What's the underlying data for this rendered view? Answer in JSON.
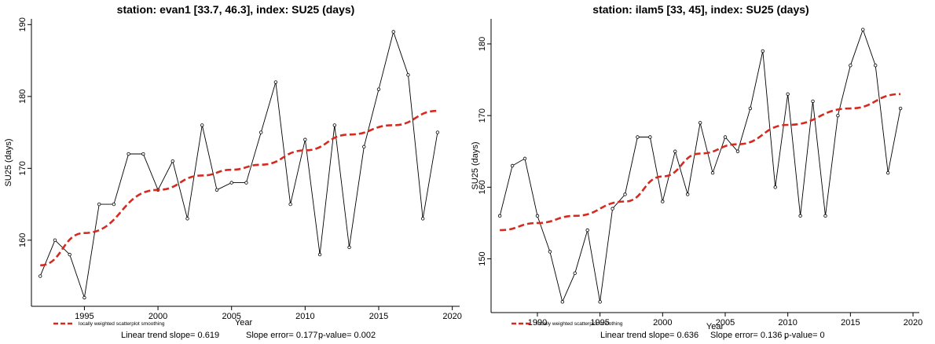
{
  "colors": {
    "line": "#000000",
    "trend": "#d42a20",
    "axis": "#000000",
    "background": "#ffffff"
  },
  "chart_data": [
    {
      "type": "line",
      "title": "station: evan1 [33.7, 46.3], index: SU25 (days)",
      "xlabel": "Year",
      "ylabel": "SU25 (days)",
      "xlim": [
        1991.4,
        2020.5
      ],
      "ylim": [
        150.8,
        190.8
      ],
      "xticks": [
        1995,
        2000,
        2005,
        2010,
        2015,
        2020
      ],
      "yticks": [
        160,
        170,
        180,
        190
      ],
      "x": [
        1992,
        1993,
        1994,
        1995,
        1996,
        1997,
        1998,
        1999,
        2000,
        2001,
        2002,
        2003,
        2004,
        2005,
        2006,
        2007,
        2008,
        2009,
        2010,
        2011,
        2012,
        2013,
        2014,
        2015,
        2016,
        2017,
        2018,
        2019
      ],
      "series": [
        {
          "values": [
            155,
            160,
            158,
            152,
            165,
            165,
            172,
            172,
            167,
            171,
            163,
            176,
            167,
            168,
            168,
            175,
            182,
            165,
            174,
            158,
            176,
            159,
            173,
            181,
            189,
            183,
            163,
            175
          ]
        }
      ],
      "trend": {
        "label": "locally weighted scatterplot smoothing",
        "x": [
          1992,
          1995,
          2000,
          2003,
          2005,
          2007,
          2010,
          2013,
          2016,
          2019
        ],
        "values": [
          156.5,
          161,
          167,
          169,
          169.8,
          170.5,
          172.5,
          174.7,
          176,
          178
        ]
      },
      "stats": {
        "slope_text": "Linear trend slope= 0.619",
        "error_text": "Slope error= 0.177 ,",
        "pvalue_text": "p-value= 0.002"
      }
    },
    {
      "type": "line",
      "title": "station: ilam5 [33, 45], index: SU25 (days)",
      "xlabel": "Year",
      "ylabel": "SU25 (days)",
      "xlim": [
        1986.3,
        2020.5
      ],
      "ylim": [
        142.5,
        183.5
      ],
      "xticks": [
        1990,
        1995,
        2000,
        2005,
        2010,
        2015,
        2020
      ],
      "yticks": [
        150,
        160,
        170,
        180
      ],
      "x": [
        1987,
        1988,
        1989,
        1990,
        1991,
        1992,
        1993,
        1994,
        1995,
        1996,
        1997,
        1998,
        1999,
        2000,
        2001,
        2002,
        2003,
        2004,
        2005,
        2006,
        2007,
        2008,
        2009,
        2010,
        2011,
        2012,
        2013,
        2014,
        2015,
        2016,
        2017,
        2018,
        2019
      ],
      "series": [
        {
          "values": [
            156,
            163,
            164,
            156,
            151,
            144,
            148,
            154,
            144,
            157,
            159,
            167,
            167,
            158,
            165,
            159,
            169,
            162,
            167,
            165,
            171,
            179,
            160,
            173,
            156,
            172,
            156,
            170,
            177,
            182,
            177,
            162,
            171
          ]
        }
      ],
      "trend": {
        "label": "locally weighted scatterplot smoothing",
        "x": [
          1987,
          1990,
          1993,
          1997,
          2000,
          2003,
          2006,
          2010,
          2015,
          2019
        ],
        "values": [
          154,
          155,
          156,
          158,
          161.5,
          164.7,
          166,
          168.7,
          171,
          173
        ]
      },
      "stats": {
        "slope_text": "Linear trend slope= 0.636",
        "error_text": "Slope error= 0.136 ,",
        "pvalue_text": "p-value= 0"
      }
    }
  ]
}
